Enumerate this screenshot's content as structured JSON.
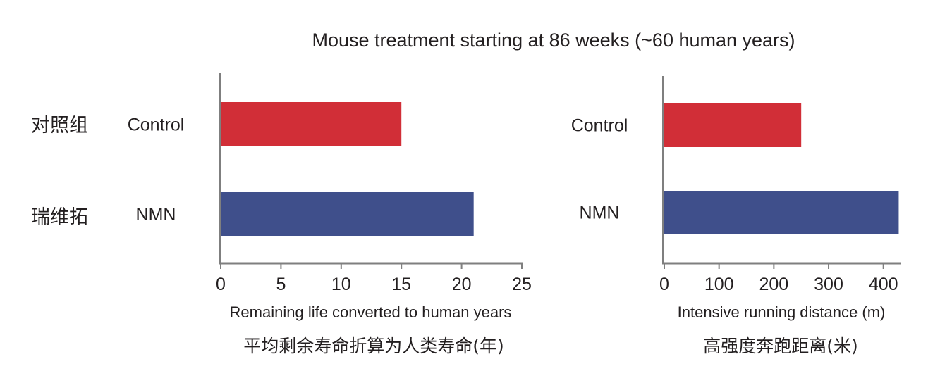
{
  "title": "Mouse treatment starting at 86 weeks (~60 human years)",
  "row_labels_cn": [
    "对照组",
    "瑞维拓"
  ],
  "chart_data": [
    {
      "type": "bar",
      "orientation": "horizontal",
      "categories": [
        "Control",
        "NMN"
      ],
      "values": [
        15,
        21
      ],
      "colors": [
        "#d12e37",
        "#3f4f8b"
      ],
      "xlim": [
        0,
        25
      ],
      "xticks": [
        0,
        5,
        10,
        15,
        20,
        25
      ],
      "xlabel": "Remaining life converted to human years",
      "xlabel_cn": "平均剩余寿命折算为人类寿命(年)",
      "grid": false
    },
    {
      "type": "bar",
      "orientation": "horizontal",
      "categories": [
        "Control",
        "NMN"
      ],
      "values": [
        250,
        428
      ],
      "colors": [
        "#d12e37",
        "#3f4f8b"
      ],
      "xlim": [
        0,
        430
      ],
      "xticks": [
        0,
        100,
        200,
        300,
        400
      ],
      "xlabel": "Intensive running distance (m)",
      "xlabel_cn": "高强度奔跑距离(米)",
      "grid": false
    }
  ]
}
